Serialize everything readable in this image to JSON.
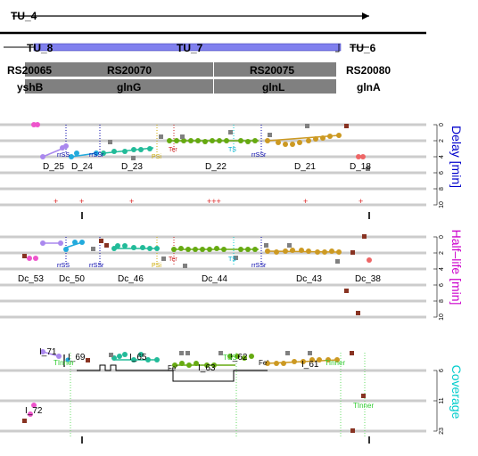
{
  "tu_labels": {
    "tu4": "TU_4",
    "tu8": "TU_8",
    "tu7": "TU_7",
    "tu6": "TU_6"
  },
  "genes": [
    {
      "id": "RS20065",
      "name": "yshB"
    },
    {
      "id": "RS20070",
      "name": "glnG"
    },
    {
      "id": "RS20075",
      "name": "glnL"
    },
    {
      "id": "RS20080",
      "name": "glnA"
    }
  ],
  "panels": {
    "delay": {
      "axis_label": "Delay [min]",
      "ticks": [
        "0",
        "2",
        "4",
        "6",
        "8",
        "10"
      ],
      "color": "#0000cc"
    },
    "halflife": {
      "axis_label": "Half–life [min]",
      "ticks": [
        "0",
        "2",
        "4",
        "6",
        "8",
        "10"
      ],
      "color": "#cc00cc"
    },
    "coverage": {
      "axis_label": "Coverage",
      "ticks": [
        "6",
        "11",
        "23"
      ],
      "color": "#00cccc"
    }
  },
  "delay_segments": [
    "D_25",
    "D_24",
    "D_23",
    "D_22",
    "D_21",
    "D_18"
  ],
  "delay_marks": [
    "+",
    "+",
    "+",
    "+++",
    "+",
    "+"
  ],
  "halflife_segments": [
    "Dc_53",
    "Dc_50",
    "Dc_46",
    "Dc_44",
    "Dc_43",
    "Dc_38"
  ],
  "coverage_segments": [
    "I_71",
    "I_69",
    "I_65",
    "I_63",
    "I_62",
    "I_61",
    "I_72"
  ],
  "feature_tags": {
    "nss": "rrSS",
    "nssr": "rrSSr",
    "ter": "Ter",
    "psi": "PSi",
    "ts": "TS",
    "nssr2": "rrSSr",
    "tss": "TSS",
    "fe": "Fe'",
    "tinner": "TInner"
  },
  "colors": {
    "gene_box": "#808080",
    "tu_bar": "#8080ee",
    "purple": "#aa88ee",
    "blue": "#22aadd",
    "teal": "#22bb99",
    "green": "#66aa11",
    "gold": "#cc9922",
    "red": "#ee6666",
    "pink": "#ee55cc",
    "brown": "#883322",
    "gray": "#808080"
  }
}
